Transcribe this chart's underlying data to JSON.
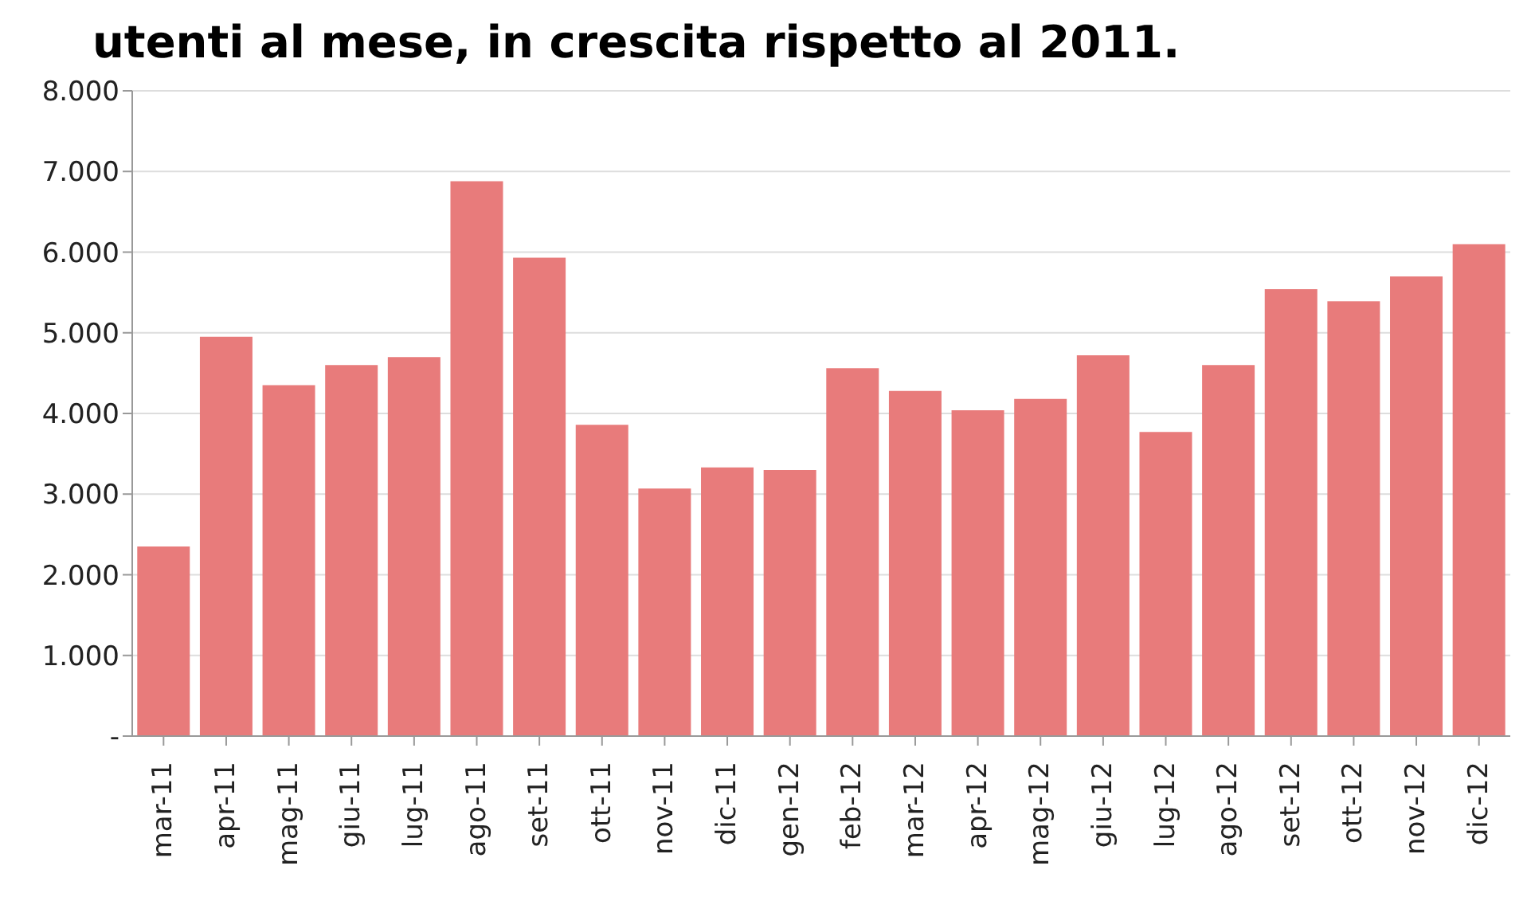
{
  "chart_data": {
    "type": "bar",
    "title": "utenti al mese, in crescita rispetto al 2011.",
    "categories": [
      "mar-11",
      "apr-11",
      "mag-11",
      "giu-11",
      "lug-11",
      "ago-11",
      "set-11",
      "ott-11",
      "nov-11",
      "dic-11",
      "gen-12",
      "feb-12",
      "mar-12",
      "apr-12",
      "mag-12",
      "giu-12",
      "lug-12",
      "ago-12",
      "set-12",
      "ott-12",
      "nov-12",
      "dic-12"
    ],
    "values": [
      2350,
      4950,
      4350,
      4600,
      4700,
      6880,
      5930,
      3860,
      3070,
      3330,
      3300,
      4560,
      4280,
      4040,
      4180,
      4720,
      3770,
      4600,
      5540,
      5390,
      5700,
      6100
    ],
    "color": "#e87b7b",
    "ylim": [
      0,
      8000
    ],
    "yticks": [
      {
        "value": 0,
        "label": "-"
      },
      {
        "value": 1000,
        "label": "1.000"
      },
      {
        "value": 2000,
        "label": "2.000"
      },
      {
        "value": 3000,
        "label": "3.000"
      },
      {
        "value": 4000,
        "label": "4.000"
      },
      {
        "value": 5000,
        "label": "5.000"
      },
      {
        "value": 6000,
        "label": "6.000"
      },
      {
        "value": 7000,
        "label": "7.000"
      },
      {
        "value": 8000,
        "label": "8.000"
      }
    ],
    "grid": "y"
  }
}
